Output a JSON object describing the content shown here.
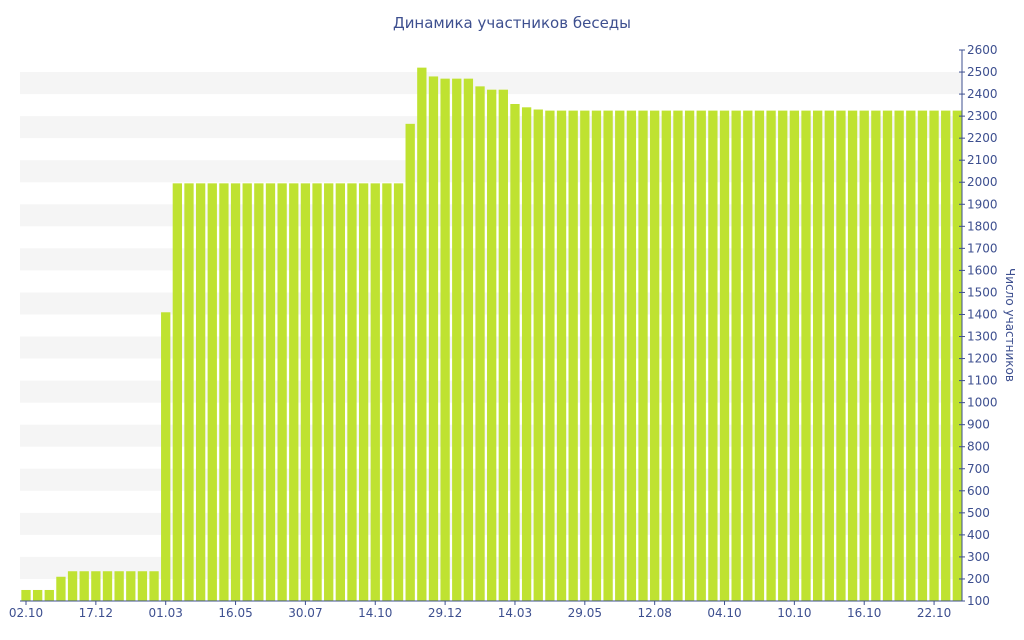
{
  "chart_data": {
    "type": "bar",
    "title": "Динамика участников беседы",
    "xlabel": "",
    "ylabel": "Число участников",
    "ylim": [
      100,
      2600
    ],
    "y_ticks": [
      100,
      200,
      300,
      400,
      500,
      600,
      700,
      800,
      900,
      1000,
      1100,
      1200,
      1300,
      1400,
      1500,
      1600,
      1700,
      1800,
      1900,
      2000,
      2100,
      2200,
      2300,
      2400,
      2500,
      2600
    ],
    "x_tick_labels": [
      "02.10",
      "17.12",
      "01.03",
      "16.05",
      "30.07",
      "14.10",
      "29.12",
      "14.03",
      "29.05",
      "12.08",
      "04.10",
      "10.10",
      "16.10",
      "22.10"
    ],
    "x_tick_bar_index": [
      0,
      6,
      12,
      18,
      24,
      30,
      36,
      42,
      48,
      54,
      60,
      66,
      72,
      78
    ],
    "grid": "alternating horizontal bands",
    "legend": "none",
    "bar_color": "#bfe231",
    "band_color": "#f5f5f5",
    "text_color": "#3d4f8f",
    "values": [
      150,
      150,
      150,
      210,
      235,
      235,
      235,
      235,
      235,
      235,
      235,
      235,
      1410,
      1995,
      1995,
      1995,
      1995,
      1995,
      1995,
      1995,
      1995,
      1995,
      1995,
      1995,
      1995,
      1995,
      1995,
      1995,
      1995,
      1995,
      1995,
      1995,
      1995,
      2265,
      2520,
      2480,
      2470,
      2470,
      2470,
      2435,
      2420,
      2420,
      2355,
      2340,
      2330,
      2325,
      2325,
      2325,
      2325,
      2325,
      2325,
      2325,
      2325,
      2325,
      2325,
      2325,
      2325,
      2325,
      2325,
      2325,
      2325,
      2325,
      2325,
      2325,
      2325,
      2325,
      2325,
      2325,
      2325,
      2325,
      2325,
      2325,
      2325,
      2325,
      2325,
      2325,
      2325,
      2325,
      2325,
      2325,
      2325
    ]
  }
}
